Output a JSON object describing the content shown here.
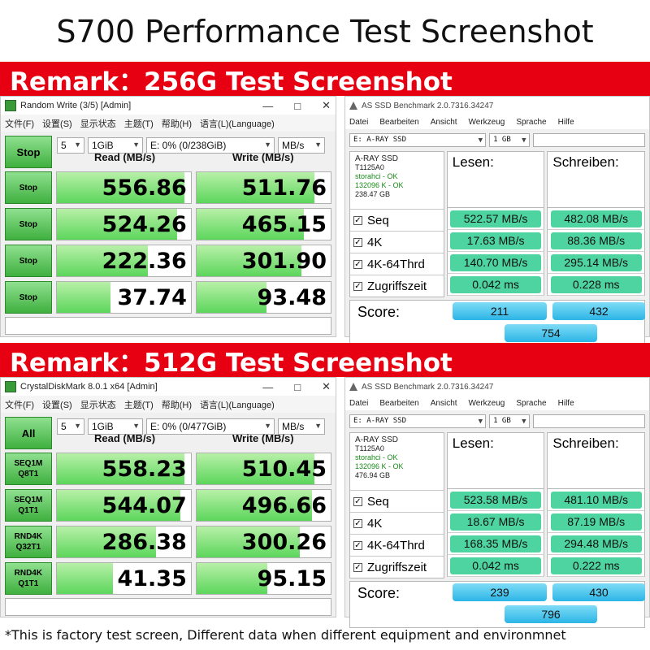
{
  "title": "S700 Performance Test Screenshot",
  "footer": "*This is factory test screen,   Different data when different equipment and environmnet",
  "section1": {
    "remark": "Remark：256G Test Screenshot",
    "cdm": {
      "window_title": "Random Write (3/5) [Admin]",
      "menu": [
        "文件(F)",
        "设置(S)",
        "显示状态",
        "主题(T)",
        "帮助(H)",
        "语言(L)(Language)"
      ],
      "main_button": "Stop",
      "count": "5",
      "size": "1GiB",
      "drive": "E: 0% (0/238GiB)",
      "unit": "MB/s",
      "read_header": "Read (MB/s)",
      "write_header": "Write (MB/s)",
      "rows": [
        {
          "button": "Stop",
          "button2": "",
          "read": "556.86",
          "write": "511.76",
          "read_fill": 0.95,
          "write_fill": 0.88
        },
        {
          "button": "Stop",
          "button2": "",
          "read": "524.26",
          "write": "465.15",
          "read_fill": 0.9,
          "write_fill": 0.8
        },
        {
          "button": "Stop",
          "button2": "",
          "read": "222.36",
          "write": "301.90",
          "read_fill": 0.68,
          "write_fill": 0.78
        },
        {
          "button": "Stop",
          "button2": "",
          "read": "37.74",
          "write": "93.48",
          "read_fill": 0.4,
          "write_fill": 0.52
        }
      ]
    },
    "asssd": {
      "window_title": "AS SSD Benchmark 2.0.7316.34247",
      "menu": [
        "Datei",
        "Bearbeiten",
        "Ansicht",
        "Werkzeug",
        "Sprache",
        "Hilfe"
      ],
      "drive": "E:  A-RAY SSD",
      "size": "1 GB",
      "drive_name": "A-RAY SSD",
      "firmware": "T1125A0",
      "driver": "storahci - OK",
      "align": "132096 K - OK",
      "capacity": "238.47 GB",
      "read_header": "Lesen:",
      "write_header": "Schreiben:",
      "tests": [
        {
          "label": "Seq",
          "read": "522.57 MB/s",
          "write": "482.08 MB/s"
        },
        {
          "label": "4K",
          "read": "17.63 MB/s",
          "write": "88.36 MB/s"
        },
        {
          "label": "4K-64Thrd",
          "read": "140.70 MB/s",
          "write": "295.14 MB/s"
        },
        {
          "label": "Zugriffszeit",
          "read": "0.042 ms",
          "write": "0.228 ms"
        }
      ],
      "score_label": "Score:",
      "score_read": "211",
      "score_write": "432",
      "score_total": "754"
    }
  },
  "section2": {
    "remark": "Remark：512G Test Screenshot",
    "cdm": {
      "window_title": "CrystalDiskMark 8.0.1 x64 [Admin]",
      "menu": [
        "文件(F)",
        "设置(S)",
        "显示状态",
        "主题(T)",
        "帮助(H)",
        "语言(L)(Language)"
      ],
      "main_button": "All",
      "count": "5",
      "size": "1GiB",
      "drive": "E: 0% (0/477GiB)",
      "unit": "MB/s",
      "read_header": "Read (MB/s)",
      "write_header": "Write (MB/s)",
      "rows": [
        {
          "button": "SEQ1M",
          "button2": "Q8T1",
          "read": "558.23",
          "write": "510.45",
          "read_fill": 0.95,
          "write_fill": 0.88
        },
        {
          "button": "SEQ1M",
          "button2": "Q1T1",
          "read": "544.07",
          "write": "496.66",
          "read_fill": 0.92,
          "write_fill": 0.86
        },
        {
          "button": "RND4K",
          "button2": "Q32T1",
          "read": "286.38",
          "write": "300.26",
          "read_fill": 0.74,
          "write_fill": 0.77
        },
        {
          "button": "RND4K",
          "button2": "Q1T1",
          "read": "41.35",
          "write": "95.15",
          "read_fill": 0.42,
          "write_fill": 0.53
        }
      ]
    },
    "asssd": {
      "window_title": "AS SSD Benchmark 2.0.7316.34247",
      "menu": [
        "Datei",
        "Bearbeiten",
        "Ansicht",
        "Werkzeug",
        "Sprache",
        "Hilfe"
      ],
      "drive": "E:  A-RAY SSD",
      "size": "1 GB",
      "drive_name": "A-RAY SSD",
      "firmware": "T1125A0",
      "driver": "storahci - OK",
      "align": "132096 K - OK",
      "capacity": "476.94 GB",
      "read_header": "Lesen:",
      "write_header": "Schreiben:",
      "tests": [
        {
          "label": "Seq",
          "read": "523.58 MB/s",
          "write": "481.10 MB/s"
        },
        {
          "label": "4K",
          "read": "18.67 MB/s",
          "write": "87.19 MB/s"
        },
        {
          "label": "4K-64Thrd",
          "read": "168.35 MB/s",
          "write": "294.48 MB/s"
        },
        {
          "label": "Zugriffszeit",
          "read": "0.042 ms",
          "write": "0.222 ms"
        }
      ],
      "score_label": "Score:",
      "score_read": "239",
      "score_write": "430",
      "score_total": "796"
    }
  }
}
